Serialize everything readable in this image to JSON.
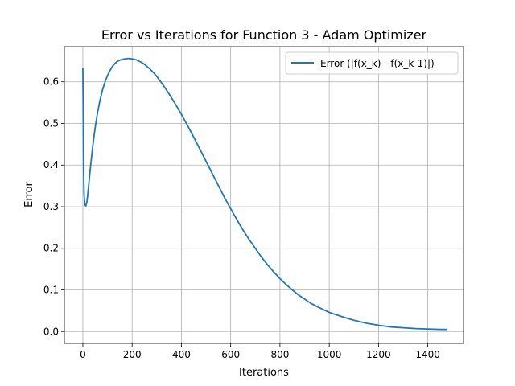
{
  "chart_data": {
    "type": "line",
    "title": "Error vs Iterations for Function 3 - Adam Optimizer",
    "xlabel": "Iterations",
    "ylabel": "Error",
    "xlim": [
      -75,
      1545
    ],
    "ylim": [
      -0.0285,
      0.6845
    ],
    "xticks": [
      0,
      200,
      400,
      600,
      800,
      1000,
      1200,
      1400
    ],
    "yticks": [
      0.0,
      0.1,
      0.2,
      0.3,
      0.4,
      0.5,
      0.6
    ],
    "grid": true,
    "legend_position": "upper right",
    "series": [
      {
        "name": "Error (|f(x_k) - f(x_k-1)|)",
        "color": "#1f77b4",
        "x": [
          0,
          1,
          2,
          3,
          5,
          8,
          12,
          16,
          20,
          25,
          30,
          40,
          50,
          60,
          70,
          80,
          90,
          100,
          110,
          120,
          130,
          140,
          150,
          160,
          170,
          180,
          190,
          200,
          210,
          220,
          230,
          240,
          250,
          260,
          270,
          280,
          290,
          300,
          325,
          350,
          375,
          400,
          425,
          450,
          475,
          500,
          525,
          550,
          575,
          600,
          625,
          650,
          675,
          700,
          725,
          750,
          775,
          800,
          825,
          850,
          875,
          900,
          925,
          950,
          975,
          1000,
          1050,
          1100,
          1150,
          1200,
          1250,
          1300,
          1350,
          1400,
          1450,
          1475
        ],
        "values": [
          0.633,
          0.55,
          0.46,
          0.39,
          0.33,
          0.305,
          0.302,
          0.31,
          0.33,
          0.36,
          0.39,
          0.445,
          0.49,
          0.527,
          0.557,
          0.581,
          0.6,
          0.615,
          0.627,
          0.637,
          0.644,
          0.649,
          0.652,
          0.654,
          0.655,
          0.656,
          0.656,
          0.655,
          0.654,
          0.652,
          0.649,
          0.646,
          0.642,
          0.637,
          0.632,
          0.626,
          0.62,
          0.613,
          0.593,
          0.571,
          0.547,
          0.522,
          0.495,
          0.467,
          0.438,
          0.409,
          0.38,
          0.351,
          0.322,
          0.295,
          0.269,
          0.244,
          0.221,
          0.2,
          0.179,
          0.16,
          0.143,
          0.127,
          0.113,
          0.1,
          0.088,
          0.078,
          0.068,
          0.06,
          0.053,
          0.046,
          0.036,
          0.027,
          0.02,
          0.015,
          0.011,
          0.009,
          0.007,
          0.006,
          0.005,
          0.005
        ]
      }
    ]
  }
}
